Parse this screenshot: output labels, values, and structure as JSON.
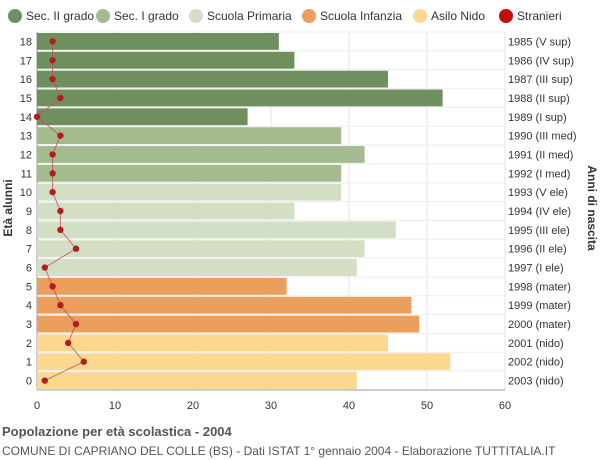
{
  "chart_data": {
    "type": "bar",
    "orientation": "horizontal",
    "legend": {
      "placement": "top",
      "items": [
        {
          "label": "Sec. II grado",
          "color": "#6f8f5e"
        },
        {
          "label": "Sec. I grado",
          "color": "#a3bb8e"
        },
        {
          "label": "Scuola Primaria",
          "color": "#d3dfc4"
        },
        {
          "label": "Scuola Infanzia",
          "color": "#ec9e5c"
        },
        {
          "label": "Asilo Nido",
          "color": "#fcd790"
        },
        {
          "label": "Stranieri",
          "color": "#c40a0a",
          "marker": "circle"
        }
      ]
    },
    "ylabel_left": "Età alunni",
    "ylabel_right": "Anni di nascita",
    "xlim": [
      0,
      60
    ],
    "x_ticks": [
      0,
      10,
      20,
      30,
      40,
      50,
      60
    ],
    "grid": "vertical",
    "rows": [
      {
        "age": "18",
        "birth": "1985 (V sup)",
        "value": 31,
        "stranieri": 2,
        "level": 0
      },
      {
        "age": "17",
        "birth": "1986 (IV sup)",
        "value": 33,
        "stranieri": 2,
        "level": 0
      },
      {
        "age": "16",
        "birth": "1987 (III sup)",
        "value": 45,
        "stranieri": 2,
        "level": 0
      },
      {
        "age": "15",
        "birth": "1988 (II sup)",
        "value": 52,
        "stranieri": 3,
        "level": 0
      },
      {
        "age": "14",
        "birth": "1989 (I sup)",
        "value": 27,
        "stranieri": 0,
        "level": 0
      },
      {
        "age": "13",
        "birth": "1990 (III med)",
        "value": 39,
        "stranieri": 3,
        "level": 1
      },
      {
        "age": "12",
        "birth": "1991 (II med)",
        "value": 42,
        "stranieri": 2,
        "level": 1
      },
      {
        "age": "11",
        "birth": "1992 (I med)",
        "value": 39,
        "stranieri": 2,
        "level": 1
      },
      {
        "age": "10",
        "birth": "1993 (V ele)",
        "value": 39,
        "stranieri": 2,
        "level": 2
      },
      {
        "age": "9",
        "birth": "1994 (IV ele)",
        "value": 33,
        "stranieri": 3,
        "level": 2
      },
      {
        "age": "8",
        "birth": "1995 (III ele)",
        "value": 46,
        "stranieri": 3,
        "level": 2
      },
      {
        "age": "7",
        "birth": "1996 (II ele)",
        "value": 42,
        "stranieri": 5,
        "level": 2
      },
      {
        "age": "6",
        "birth": "1997 (I ele)",
        "value": 41,
        "stranieri": 1,
        "level": 2
      },
      {
        "age": "5",
        "birth": "1998 (mater)",
        "value": 32,
        "stranieri": 2,
        "level": 3
      },
      {
        "age": "4",
        "birth": "1999 (mater)",
        "value": 48,
        "stranieri": 3,
        "level": 3
      },
      {
        "age": "3",
        "birth": "2000 (mater)",
        "value": 49,
        "stranieri": 5,
        "level": 3
      },
      {
        "age": "2",
        "birth": "2001 (nido)",
        "value": 45,
        "stranieri": 4,
        "level": 4
      },
      {
        "age": "1",
        "birth": "2002 (nido)",
        "value": 53,
        "stranieri": 6,
        "level": 4
      },
      {
        "age": "0",
        "birth": "2003 (nido)",
        "value": 41,
        "stranieri": 1,
        "level": 4
      }
    ]
  },
  "footer": {
    "title": "Popolazione per età scolastica - 2004",
    "subtitle": "COMUNE DI CAPRIANO DEL COLLE (BS) - Dati ISTAT 1° gennaio 2004 - Elaborazione TUTTITALIA.IT"
  }
}
